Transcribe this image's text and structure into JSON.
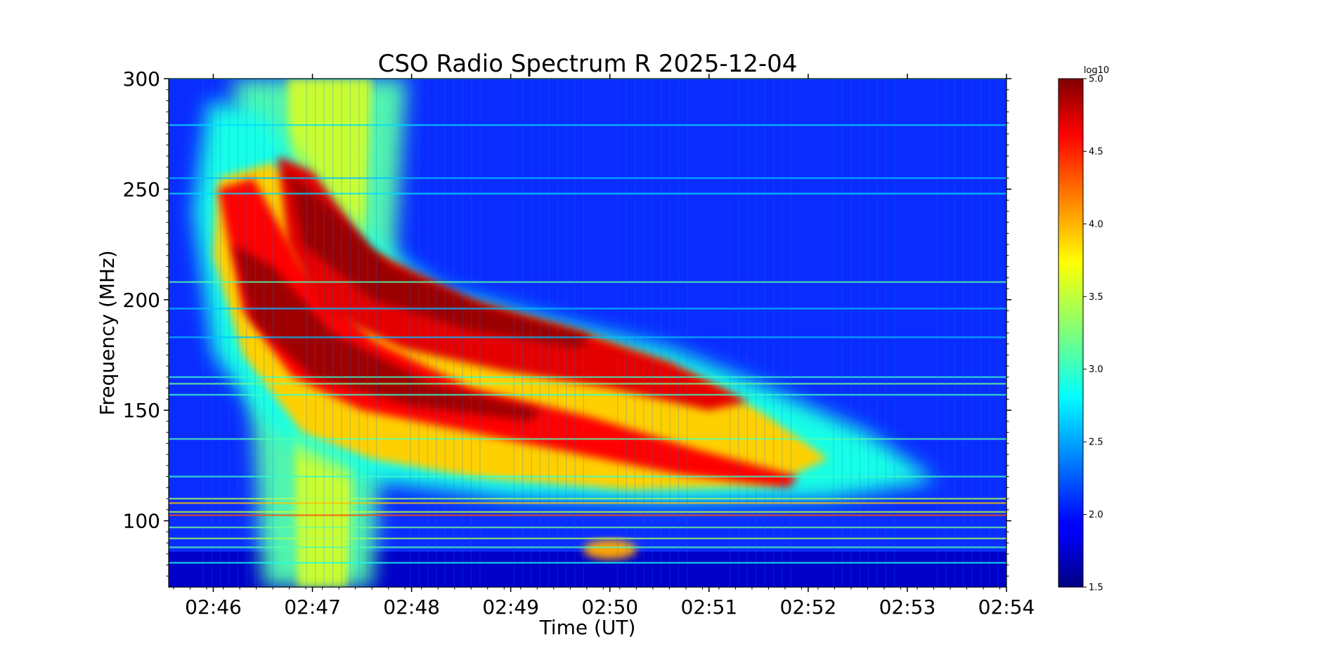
{
  "chart_data": {
    "type": "heatmap",
    "title": "CSO Radio Spectrum R 2025-12-04",
    "xlabel": "Time (UT)",
    "ylabel": "Frequency (MHz)",
    "x_ticks": [
      "02:46",
      "02:47",
      "02:48",
      "02:49",
      "02:50",
      "02:51",
      "02:52",
      "02:53",
      "02:54"
    ],
    "x_range_minutes": [
      45.55,
      54.0
    ],
    "y_ticks": [
      100,
      150,
      200,
      250,
      300
    ],
    "ylim": [
      70,
      300
    ],
    "colorbar": {
      "label": "log10",
      "ticks": [
        "1.5",
        "2.0",
        "2.5",
        "3.0",
        "3.5",
        "4.0",
        "4.5",
        "5.0"
      ],
      "range": [
        1.5,
        5.0
      ],
      "colormap": "jet"
    },
    "features": [
      {
        "kind": "background",
        "level": 2.0
      },
      {
        "kind": "drift-lane",
        "t_start": 46.0,
        "t_end": 52.3,
        "f_top_start": 260,
        "f_bottom_end": 115,
        "level": 4.7
      },
      {
        "kind": "drift-lane",
        "t_start": 46.6,
        "t_end": 51.8,
        "f_top_start": 265,
        "f_bottom_end": 118,
        "level": 4.8
      },
      {
        "kind": "broadband-column",
        "t_start": 46.4,
        "t_end": 47.9,
        "level": 3.3
      },
      {
        "kind": "rfi-band",
        "f": 108,
        "level": 3.8
      },
      {
        "kind": "rfi-band",
        "f": 103,
        "level": 3.6
      },
      {
        "kind": "rfi-band",
        "f": 92,
        "level": 3.4
      }
    ]
  }
}
